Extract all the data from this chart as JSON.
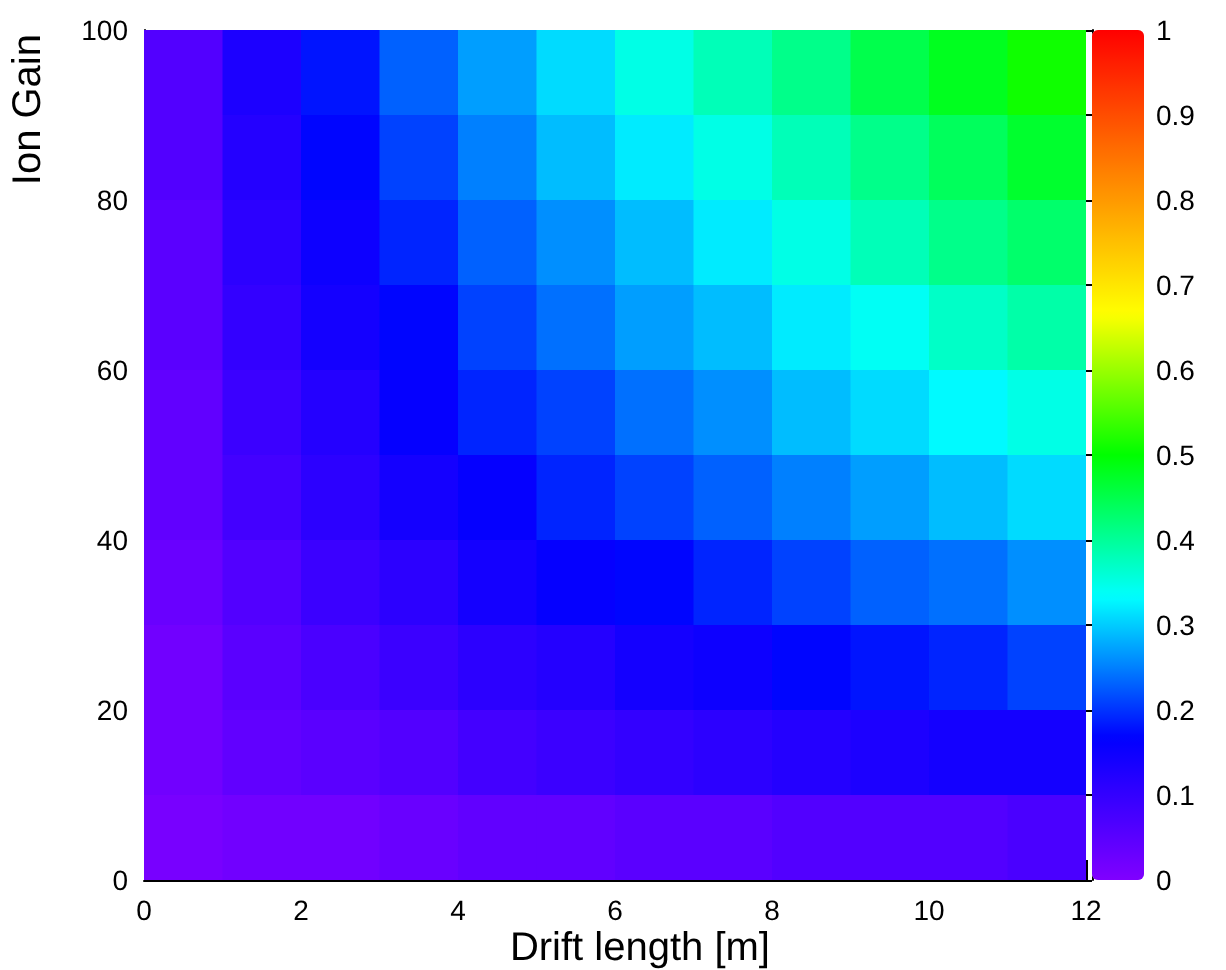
{
  "chart_data": {
    "type": "heatmap",
    "xlabel": "Drift length [m]",
    "ylabel": "Ion Gain",
    "x": [
      0.5,
      1.5,
      2.5,
      3.5,
      4.5,
      5.5,
      6.5,
      7.5,
      8.5,
      9.5,
      10.5,
      11.5
    ],
    "y": [
      95,
      85,
      75,
      65,
      55,
      45,
      35,
      25,
      15,
      5
    ],
    "xlim": [
      0,
      12
    ],
    "xticks": [
      0,
      2,
      4,
      6,
      8,
      10,
      12
    ],
    "ylim": [
      0,
      100
    ],
    "yticks": [
      0,
      20,
      40,
      60,
      80,
      100
    ],
    "clim": [
      0,
      1
    ],
    "cticks": [
      0,
      0.1,
      0.2,
      0.3,
      0.4,
      0.5,
      0.6,
      0.7,
      0.8,
      0.9,
      1
    ],
    "cells": [
      [
        0.06,
        0.13,
        0.18,
        0.23,
        0.27,
        0.31,
        0.35,
        0.38,
        0.41,
        0.45,
        0.48,
        0.51
      ],
      [
        0.06,
        0.12,
        0.17,
        0.21,
        0.25,
        0.29,
        0.32,
        0.35,
        0.38,
        0.41,
        0.44,
        0.47
      ],
      [
        0.05,
        0.11,
        0.15,
        0.19,
        0.23,
        0.26,
        0.29,
        0.32,
        0.35,
        0.38,
        0.41,
        0.43
      ],
      [
        0.05,
        0.1,
        0.14,
        0.17,
        0.21,
        0.24,
        0.27,
        0.29,
        0.32,
        0.34,
        0.37,
        0.39
      ],
      [
        0.04,
        0.09,
        0.12,
        0.16,
        0.19,
        0.21,
        0.24,
        0.26,
        0.29,
        0.31,
        0.33,
        0.35
      ],
      [
        0.04,
        0.08,
        0.11,
        0.14,
        0.16,
        0.19,
        0.21,
        0.23,
        0.25,
        0.27,
        0.29,
        0.31
      ],
      [
        0.03,
        0.06,
        0.09,
        0.11,
        0.14,
        0.16,
        0.17,
        0.19,
        0.21,
        0.23,
        0.24,
        0.26
      ],
      [
        0.02,
        0.05,
        0.07,
        0.09,
        0.11,
        0.12,
        0.14,
        0.15,
        0.17,
        0.18,
        0.19,
        0.21
      ],
      [
        0.02,
        0.04,
        0.05,
        0.06,
        0.08,
        0.09,
        0.1,
        0.11,
        0.12,
        0.13,
        0.14,
        0.14
      ],
      [
        0.01,
        0.02,
        0.02,
        0.03,
        0.04,
        0.04,
        0.05,
        0.05,
        0.06,
        0.06,
        0.06,
        0.07
      ]
    ]
  }
}
